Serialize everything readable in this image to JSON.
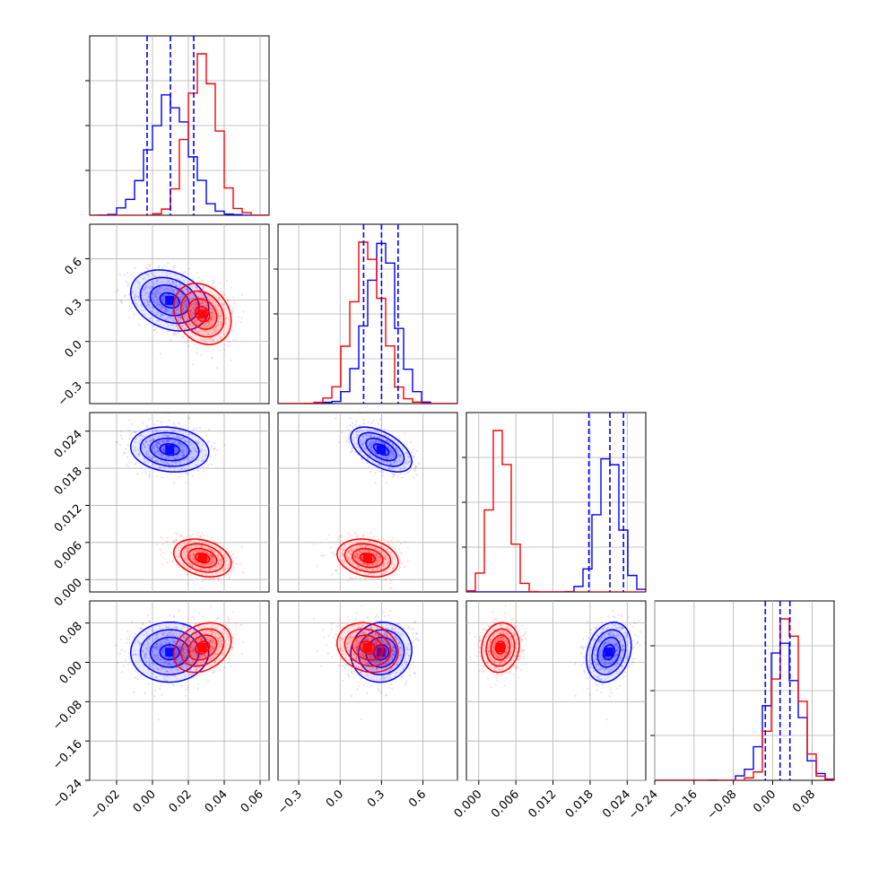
{
  "colors": {
    "blue": "#0000ff",
    "red": "#ff0000",
    "grid": "#b0b0b0",
    "axis": "#000000"
  },
  "chart_data": {
    "type": "corner",
    "grid": true,
    "series": [
      {
        "color": "#0000ff",
        "params": [
          {
            "mean": 0.01,
            "sd": 0.011
          },
          {
            "mean": 0.3,
            "sd": 0.11
          },
          {
            "mean": 0.021,
            "sd": 0.0018
          },
          {
            "mean": 0.02,
            "sd": 0.03
          }
        ],
        "corr": [
          [
            1,
            -0.3,
            -0.1,
            0.0
          ],
          [
            -0.3,
            1,
            -0.55,
            0.05
          ],
          [
            -0.1,
            -0.55,
            1,
            0.2
          ],
          [
            0.0,
            0.05,
            0.2,
            1
          ]
        ],
        "quantile_lines": [
          [
            -0.003,
            0.01,
            0.023
          ],
          [
            0.17,
            0.3,
            0.42
          ],
          [
            0.0178,
            0.0212,
            0.0234
          ],
          [
            -0.015,
            0.015,
            0.035
          ]
        ]
      },
      {
        "color": "#ff0000",
        "params": [
          {
            "mean": 0.028,
            "sd": 0.008
          },
          {
            "mean": 0.2,
            "sd": 0.11
          },
          {
            "mean": 0.0035,
            "sd": 0.0015
          },
          {
            "mean": 0.03,
            "sd": 0.025
          }
        ],
        "corr": [
          [
            1,
            -0.2,
            -0.3,
            0.3
          ],
          [
            -0.2,
            1,
            -0.2,
            -0.2
          ],
          [
            -0.3,
            -0.2,
            1,
            0.1
          ],
          [
            0.3,
            -0.2,
            0.1,
            1
          ]
        ]
      }
    ],
    "params": [
      {
        "range": [
          -0.035,
          0.065
        ],
        "ticks": [
          "−0.02",
          "0.00",
          "0.02",
          "0.04",
          "0.06"
        ],
        "tick_values": [
          -0.02,
          0.0,
          0.02,
          0.04,
          0.06
        ]
      },
      {
        "range": [
          -0.45,
          0.85
        ],
        "ticks": [
          "−0.3",
          "0.0",
          "0.3",
          "0.6"
        ],
        "tick_values": [
          -0.3,
          0.0,
          0.3,
          0.6
        ]
      },
      {
        "range": [
          -0.002,
          0.027
        ],
        "ticks": [
          "0.000",
          "0.006",
          "0.012",
          "0.018",
          "0.024"
        ],
        "tick_values": [
          0.0,
          0.006,
          0.012,
          0.018,
          0.024
        ]
      },
      {
        "range": [
          -0.24,
          0.125
        ],
        "ticks": [
          "−0.24",
          "−0.16",
          "−0.08",
          "0.00",
          "0.08"
        ],
        "tick_values": [
          -0.24,
          -0.16,
          -0.08,
          0.0,
          0.08
        ]
      }
    ]
  }
}
